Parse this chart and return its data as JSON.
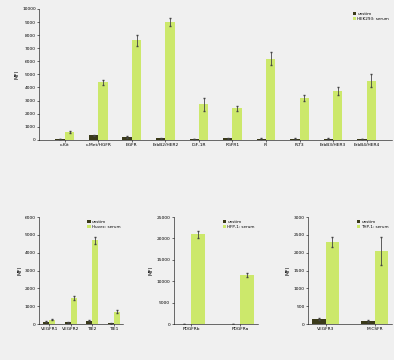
{
  "top_panel": {
    "legend": [
      "unstim",
      "HEK293: serum"
    ],
    "categories": [
      "c-Kit",
      "c-Met/HGFR",
      "EGFR",
      "ErbB2/HER2",
      "IGF-1R",
      "FGFR1",
      "IR",
      "FLT3",
      "ErbB3/HER3",
      "ErbB4/HER4"
    ],
    "unstim": [
      50,
      350,
      200,
      100,
      30,
      100,
      80,
      80,
      80,
      50
    ],
    "stim": [
      600,
      4400,
      7600,
      9000,
      2700,
      2400,
      6200,
      3200,
      3700,
      4500
    ],
    "unstim_err": [
      20,
      50,
      60,
      30,
      10,
      20,
      20,
      20,
      20,
      15
    ],
    "stim_err": [
      80,
      200,
      400,
      300,
      500,
      200,
      500,
      200,
      300,
      500
    ],
    "ylim": [
      0,
      10000
    ],
    "yticks": [
      0,
      1000,
      2000,
      3000,
      4000,
      5000,
      6000,
      7000,
      8000,
      9000,
      10000
    ],
    "ylabel": "MFI"
  },
  "bottom_left": {
    "legend": [
      "unstim",
      "Huvec: serum"
    ],
    "categories": [
      "VEGFR1",
      "VEGFR2",
      "TIE2",
      "TIE1"
    ],
    "unstim": [
      130,
      100,
      180,
      30
    ],
    "stim": [
      250,
      1450,
      4700,
      700
    ],
    "unstim_err": [
      30,
      20,
      30,
      10
    ],
    "stim_err": [
      40,
      100,
      200,
      80
    ],
    "ylim": [
      0,
      6000
    ],
    "yticks": [
      0,
      1000,
      2000,
      3000,
      4000,
      5000,
      6000
    ],
    "ylabel": "MFI"
  },
  "bottom_mid": {
    "legend": [
      "unstim",
      "HFP-1: serum"
    ],
    "categories": [
      "PDGFRb",
      "PDGFRa"
    ],
    "unstim": [
      30,
      20
    ],
    "stim": [
      21000,
      11500
    ],
    "unstim_err": [
      10,
      5
    ],
    "stim_err": [
      800,
      500
    ],
    "ylim": [
      0,
      25000
    ],
    "yticks": [
      0,
      5000,
      10000,
      15000,
      20000,
      25000
    ],
    "ylabel": "MFI"
  },
  "bottom_right": {
    "legend": [
      "unstim",
      "THP-1: serum"
    ],
    "categories": [
      "VEGFR3",
      "M-CSFR"
    ],
    "unstim": [
      150,
      80
    ],
    "stim": [
      2300,
      2050
    ],
    "unstim_err": [
      30,
      20
    ],
    "stim_err": [
      150,
      400
    ],
    "ylim": [
      0,
      3000
    ],
    "yticks": [
      0,
      500,
      1000,
      1500,
      2000,
      2500,
      3000
    ],
    "ylabel": "MFI"
  },
  "bar_width": 0.28,
  "unstim_color": "#3a3a1a",
  "stim_color": "#cce86b",
  "bg_color": "#f0f0f0",
  "error_color": "#444444"
}
